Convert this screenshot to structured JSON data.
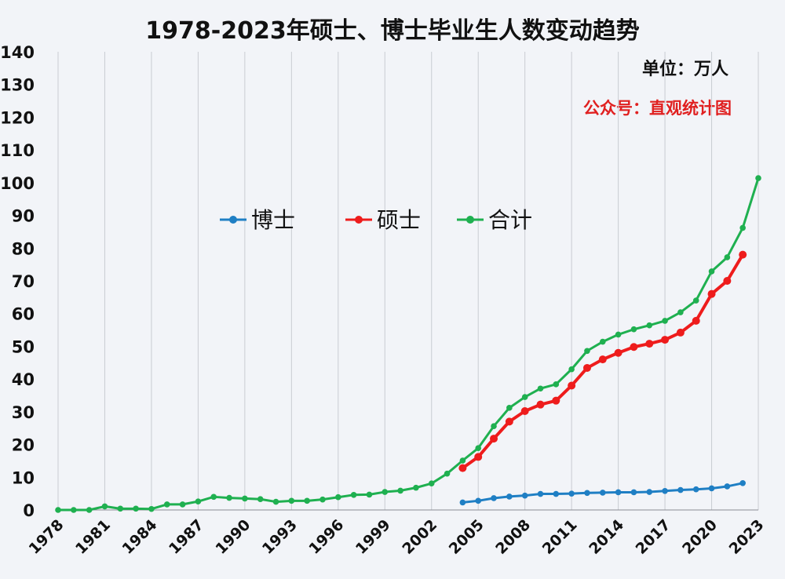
{
  "header": {
    "title": "1978-2023年硕士、博士毕业生人数变动趋势",
    "unit": "单位：万人",
    "source": "公众号：直观统计图"
  },
  "chart_data": {
    "type": "line",
    "title": "1978-2023年硕士、博士毕业生人数变动趋势",
    "ylabel": "",
    "xlabel": "",
    "unit": "万人",
    "ylim": [
      0,
      140
    ],
    "yticks": [
      0,
      10,
      20,
      30,
      40,
      50,
      60,
      70,
      80,
      90,
      100,
      110,
      120,
      130,
      140
    ],
    "xlim": [
      1978,
      2023
    ],
    "xticks": [
      1978,
      1981,
      1984,
      1987,
      1990,
      1993,
      1996,
      1999,
      2002,
      2005,
      2008,
      2011,
      2014,
      2017,
      2020,
      2023
    ],
    "grid": "vertical",
    "legend_position": "upper-center",
    "series": [
      {
        "name": "博士",
        "color": "#1f7fc4",
        "x": [
          2004,
          2005,
          2006,
          2007,
          2008,
          2009,
          2010,
          2011,
          2012,
          2013,
          2014,
          2015,
          2016,
          2017,
          2018,
          2019,
          2020,
          2021,
          2022
        ],
        "values": [
          2.3,
          2.8,
          3.6,
          4.1,
          4.4,
          4.9,
          4.9,
          5.0,
          5.2,
          5.3,
          5.4,
          5.4,
          5.5,
          5.8,
          6.1,
          6.3,
          6.6,
          7.2,
          8.2
        ]
      },
      {
        "name": "硕士",
        "color": "#ee1c1c",
        "x": [
          2004,
          2005,
          2006,
          2007,
          2008,
          2009,
          2010,
          2011,
          2012,
          2013,
          2014,
          2015,
          2016,
          2017,
          2018,
          2019,
          2020,
          2021,
          2022
        ],
        "values": [
          12.8,
          16.2,
          21.8,
          27.0,
          30.2,
          32.2,
          33.4,
          38.0,
          43.4,
          46.0,
          48.0,
          49.8,
          50.8,
          52.0,
          54.2,
          57.8,
          66.0,
          70.0,
          78.0
        ]
      },
      {
        "name": "合计",
        "color": "#1fb050",
        "x": [
          1978,
          1979,
          1980,
          1981,
          1982,
          1983,
          1984,
          1985,
          1986,
          1987,
          1988,
          1989,
          1990,
          1991,
          1992,
          1993,
          1994,
          1995,
          1996,
          1997,
          1998,
          1999,
          2000,
          2001,
          2002,
          2003,
          2004,
          2005,
          2006,
          2007,
          2008,
          2009,
          2010,
          2011,
          2012,
          2013,
          2014,
          2015,
          2016,
          2017,
          2018,
          2019,
          2020,
          2021,
          2022,
          2023
        ],
        "values": [
          0.0,
          0.0,
          0.0,
          1.1,
          0.4,
          0.4,
          0.3,
          1.7,
          1.7,
          2.6,
          4.0,
          3.7,
          3.5,
          3.3,
          2.5,
          2.8,
          2.8,
          3.2,
          3.9,
          4.6,
          4.7,
          5.5,
          5.9,
          6.8,
          8.1,
          11.1,
          15.1,
          18.9,
          25.6,
          31.2,
          34.5,
          37.1,
          38.4,
          43.0,
          48.6,
          51.4,
          53.6,
          55.2,
          56.4,
          57.8,
          60.4,
          64.0,
          72.9,
          77.2,
          86.2,
          101.4
        ]
      }
    ]
  }
}
